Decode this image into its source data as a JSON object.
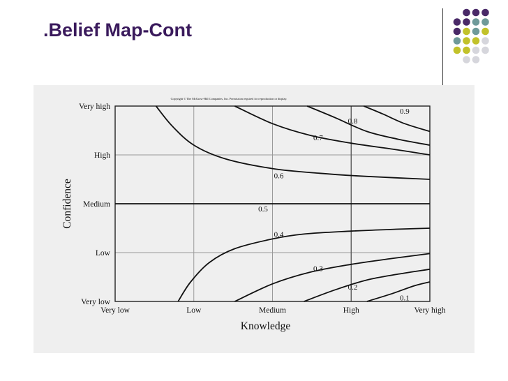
{
  "slide": {
    "title": ".Belief Map-Cont",
    "accent_colors": [
      "#4a2a68",
      "#6f9a9a",
      "#c2c22a",
      "#d6d6dc"
    ]
  },
  "chart_data": {
    "type": "line",
    "subtitle": "Copyright © The McGraw-Hill Companies, Inc. Permission required for reproduction or display.",
    "xlabel": "Knowledge",
    "ylabel": "Confidence",
    "x_categories": [
      "Very low",
      "Low",
      "Medium",
      "High",
      "Very high"
    ],
    "y_categories": [
      "Very low",
      "Low",
      "Medium",
      "High",
      "Very high"
    ],
    "xlim": [
      0,
      1
    ],
    "ylim": [
      0,
      1
    ],
    "grid": true,
    "series": [
      {
        "name": "0.9",
        "points": [
          [
            0.79,
            1.0
          ],
          [
            0.85,
            0.96
          ],
          [
            0.92,
            0.91
          ],
          [
            1.0,
            0.87
          ]
        ]
      },
      {
        "name": "0.8",
        "points": [
          [
            0.61,
            1.0
          ],
          [
            0.7,
            0.94
          ],
          [
            0.8,
            0.87
          ],
          [
            0.9,
            0.83
          ],
          [
            1.0,
            0.8
          ]
        ]
      },
      {
        "name": "0.7",
        "points": [
          [
            0.38,
            1.0
          ],
          [
            0.5,
            0.91
          ],
          [
            0.62,
            0.85
          ],
          [
            0.75,
            0.81
          ],
          [
            0.88,
            0.78
          ],
          [
            1.0,
            0.75
          ]
        ]
      },
      {
        "name": "0.6",
        "points": [
          [
            0.13,
            1.0
          ],
          [
            0.18,
            0.9
          ],
          [
            0.25,
            0.8
          ],
          [
            0.35,
            0.73
          ],
          [
            0.5,
            0.68
          ],
          [
            0.65,
            0.656
          ],
          [
            0.8,
            0.64
          ],
          [
            1.0,
            0.625
          ]
        ]
      },
      {
        "name": "0.5",
        "points": [
          [
            0.0,
            0.5
          ],
          [
            1.0,
            0.5
          ]
        ]
      },
      {
        "name": "0.4",
        "points": [
          [
            0.2,
            0.0
          ],
          [
            0.24,
            0.1
          ],
          [
            0.3,
            0.2
          ],
          [
            0.38,
            0.27
          ],
          [
            0.5,
            0.32
          ],
          [
            0.6,
            0.345
          ],
          [
            0.75,
            0.36
          ],
          [
            0.9,
            0.37
          ],
          [
            1.0,
            0.375
          ]
        ]
      },
      {
        "name": "0.3",
        "points": [
          [
            0.38,
            0.0
          ],
          [
            0.5,
            0.09
          ],
          [
            0.62,
            0.15
          ],
          [
            0.75,
            0.19
          ],
          [
            0.88,
            0.22
          ],
          [
            1.0,
            0.245
          ]
        ]
      },
      {
        "name": "0.2",
        "points": [
          [
            0.6,
            0.0
          ],
          [
            0.7,
            0.06
          ],
          [
            0.8,
            0.11
          ],
          [
            0.9,
            0.14
          ],
          [
            1.0,
            0.165
          ]
        ]
      },
      {
        "name": "0.1",
        "points": [
          [
            0.8,
            0.0
          ],
          [
            0.88,
            0.04
          ],
          [
            0.95,
            0.08
          ],
          [
            1.0,
            0.1
          ]
        ]
      }
    ],
    "labels": [
      {
        "text": "0.9",
        "x": 0.92,
        "y": 0.975
      },
      {
        "text": "0.8",
        "x": 0.755,
        "y": 0.925
      },
      {
        "text": "0.7",
        "x": 0.645,
        "y": 0.84
      },
      {
        "text": "0.6",
        "x": 0.52,
        "y": 0.645
      },
      {
        "text": "0.5",
        "x": 0.47,
        "y": 0.475
      },
      {
        "text": "0.4",
        "x": 0.52,
        "y": 0.345
      },
      {
        "text": "0.3",
        "x": 0.645,
        "y": 0.17
      },
      {
        "text": "0.2",
        "x": 0.755,
        "y": 0.075
      },
      {
        "text": "0.1",
        "x": 0.92,
        "y": 0.02
      }
    ]
  }
}
